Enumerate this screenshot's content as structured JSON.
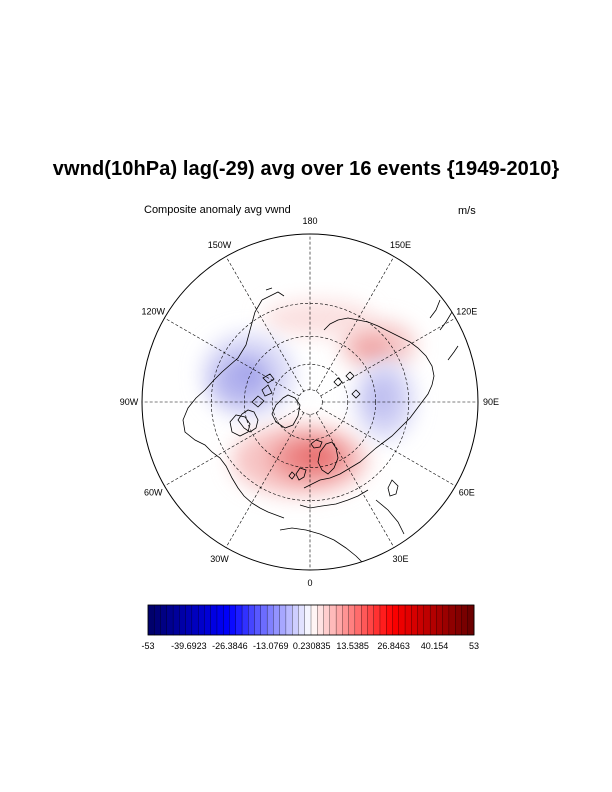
{
  "title": "vwnd(10hPa) lag(-29) avg over 16 events {1949-2010}",
  "subtitle_left": "Composite anomaly avg vwnd",
  "subtitle_right": "m/s",
  "map": {
    "projection": "north polar stereographic",
    "longitude_labels": [
      {
        "lon": 180,
        "text": "180"
      },
      {
        "lon": 150,
        "text": "150E"
      },
      {
        "lon": 120,
        "text": "120E"
      },
      {
        "lon": 90,
        "text": "90E"
      },
      {
        "lon": 60,
        "text": "60E"
      },
      {
        "lon": 30,
        "text": "30E"
      },
      {
        "lon": 0,
        "text": "0"
      },
      {
        "lon": -30,
        "text": "30W"
      },
      {
        "lon": -60,
        "text": "60W"
      },
      {
        "lon": -90,
        "text": "90W"
      },
      {
        "lon": -120,
        "text": "120W"
      },
      {
        "lon": -150,
        "text": "150W"
      }
    ],
    "latitude_circles": [
      80,
      60,
      40,
      20
    ],
    "anomaly_regions": [
      {
        "name": "north-atlantic-europe-positive",
        "sign": "positive",
        "peak_value": 30
      },
      {
        "name": "east-siberia-positive",
        "sign": "positive",
        "peak_value": 20
      },
      {
        "name": "north-pacific-positive",
        "sign": "positive",
        "peak_value": 12
      },
      {
        "name": "north-america-negative",
        "sign": "negative",
        "peak_value": -25
      },
      {
        "name": "central-asia-negative",
        "sign": "negative",
        "peak_value": -20
      }
    ]
  },
  "colorbar": {
    "colors": {
      "min": "#000066",
      "mid_low": "#0000ff",
      "mid": "#ffffff",
      "mid_high": "#ff0000",
      "max": "#660000"
    },
    "min": -53,
    "max": 53,
    "labels": [
      "-53",
      "-39.6923",
      "-26.3846",
      "-13.0769",
      "0.230835",
      "13.5385",
      "26.8463",
      "40.154",
      "53"
    ],
    "label_values": [
      -53,
      -39.6923,
      -26.3846,
      -13.0769,
      0.230835,
      13.5385,
      26.8463,
      40.154,
      53
    ]
  }
}
